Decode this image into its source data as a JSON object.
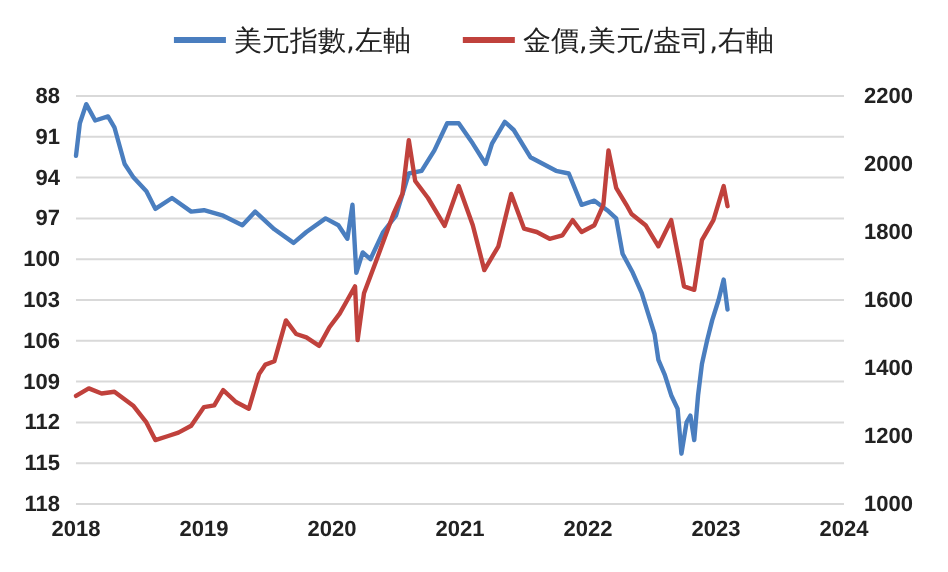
{
  "chart_data": {
    "type": "line",
    "xlim": [
      2018,
      2024
    ],
    "xticks": [
      2018,
      2019,
      2020,
      2021,
      2022,
      2023,
      2024
    ],
    "ylim": [
      118,
      88
    ],
    "yticks": [
      88,
      91,
      94,
      97,
      100,
      103,
      106,
      109,
      112,
      115,
      118
    ],
    "y2lim": [
      1000,
      2200
    ],
    "y2ticks": [
      1000,
      1200,
      1400,
      1600,
      1800,
      2000,
      2200
    ],
    "grid": "y",
    "legend": "top",
    "line_style": "solid",
    "marker": "none",
    "series": [
      {
        "name": "美元指數,左軸",
        "color": "#4a7ebf",
        "axis": "y",
        "x": [
          2018.0,
          2018.03,
          2018.08,
          2018.15,
          2018.25,
          2018.3,
          2018.38,
          2018.45,
          2018.55,
          2018.62,
          2018.75,
          2018.9,
          2019.0,
          2019.15,
          2019.3,
          2019.4,
          2019.55,
          2019.7,
          2019.8,
          2019.95,
          2020.05,
          2020.12,
          2020.16,
          2020.19,
          2020.24,
          2020.3,
          2020.4,
          2020.5,
          2020.6,
          2020.7,
          2020.8,
          2020.9,
          2020.99,
          2021.1,
          2021.2,
          2021.25,
          2021.35,
          2021.42,
          2021.55,
          2021.65,
          2021.75,
          2021.85,
          2021.95,
          2022.05,
          2022.15,
          2022.22,
          2022.27,
          2022.35,
          2022.42,
          2022.47,
          2022.52,
          2022.55,
          2022.6,
          2022.65,
          2022.7,
          2022.73,
          2022.77,
          2022.8,
          2022.83,
          2022.86,
          2022.89,
          2022.93,
          2022.97,
          2023.02,
          2023.06,
          2023.09
        ],
        "values": [
          92.4,
          90,
          88.6,
          89.8,
          89.5,
          90.3,
          93,
          94,
          95,
          96.3,
          95.5,
          96.5,
          96.4,
          96.8,
          97.5,
          96.5,
          97.8,
          98.8,
          98,
          97,
          97.5,
          98.5,
          96,
          101,
          99.5,
          100,
          98,
          96.8,
          93.7,
          93.5,
          92,
          90,
          90,
          91.5,
          93,
          91.5,
          89.9,
          90.5,
          92.5,
          93,
          93.5,
          93.7,
          96,
          95.7,
          96.4,
          97,
          99.6,
          101,
          102.5,
          104,
          105.5,
          107.4,
          108.5,
          110,
          111,
          114.3,
          112,
          111.5,
          113.3,
          110,
          107.7,
          106,
          104.5,
          103,
          101.5,
          103.7
        ]
      },
      {
        "name": "金價,美元/盎司,右軸",
        "color": "#c0413c",
        "axis": "y2",
        "x": [
          2018.0,
          2018.1,
          2018.2,
          2018.3,
          2018.45,
          2018.55,
          2018.62,
          2018.72,
          2018.8,
          2018.9,
          2019.0,
          2019.08,
          2019.15,
          2019.25,
          2019.35,
          2019.43,
          2019.48,
          2019.55,
          2019.64,
          2019.72,
          2019.8,
          2019.9,
          2019.98,
          2020.06,
          2020.12,
          2020.18,
          2020.2,
          2020.25,
          2020.35,
          2020.48,
          2020.55,
          2020.6,
          2020.65,
          2020.75,
          2020.88,
          2020.99,
          2021.1,
          2021.19,
          2021.3,
          2021.4,
          2021.5,
          2021.6,
          2021.7,
          2021.8,
          2021.88,
          2021.95,
          2022.05,
          2022.12,
          2022.16,
          2022.22,
          2022.3,
          2022.34,
          2022.45,
          2022.55,
          2022.65,
          2022.72,
          2022.75,
          2022.83,
          2022.89,
          2022.98,
          2023.06,
          2023.09
        ],
        "values": [
          1318,
          1340,
          1325,
          1330,
          1288,
          1240,
          1188,
          1200,
          1210,
          1230,
          1285,
          1290,
          1335,
          1300,
          1280,
          1382,
          1410,
          1420,
          1540,
          1500,
          1490,
          1465,
          1520,
          1560,
          1600,
          1640,
          1482,
          1620,
          1720,
          1853,
          1912,
          2070,
          1950,
          1900,
          1818,
          1935,
          1820,
          1688,
          1758,
          1912,
          1810,
          1800,
          1780,
          1790,
          1835,
          1800,
          1820,
          1880,
          2040,
          1930,
          1880,
          1853,
          1820,
          1758,
          1835,
          1700,
          1640,
          1630,
          1776,
          1835,
          1935,
          1876
        ]
      }
    ]
  }
}
